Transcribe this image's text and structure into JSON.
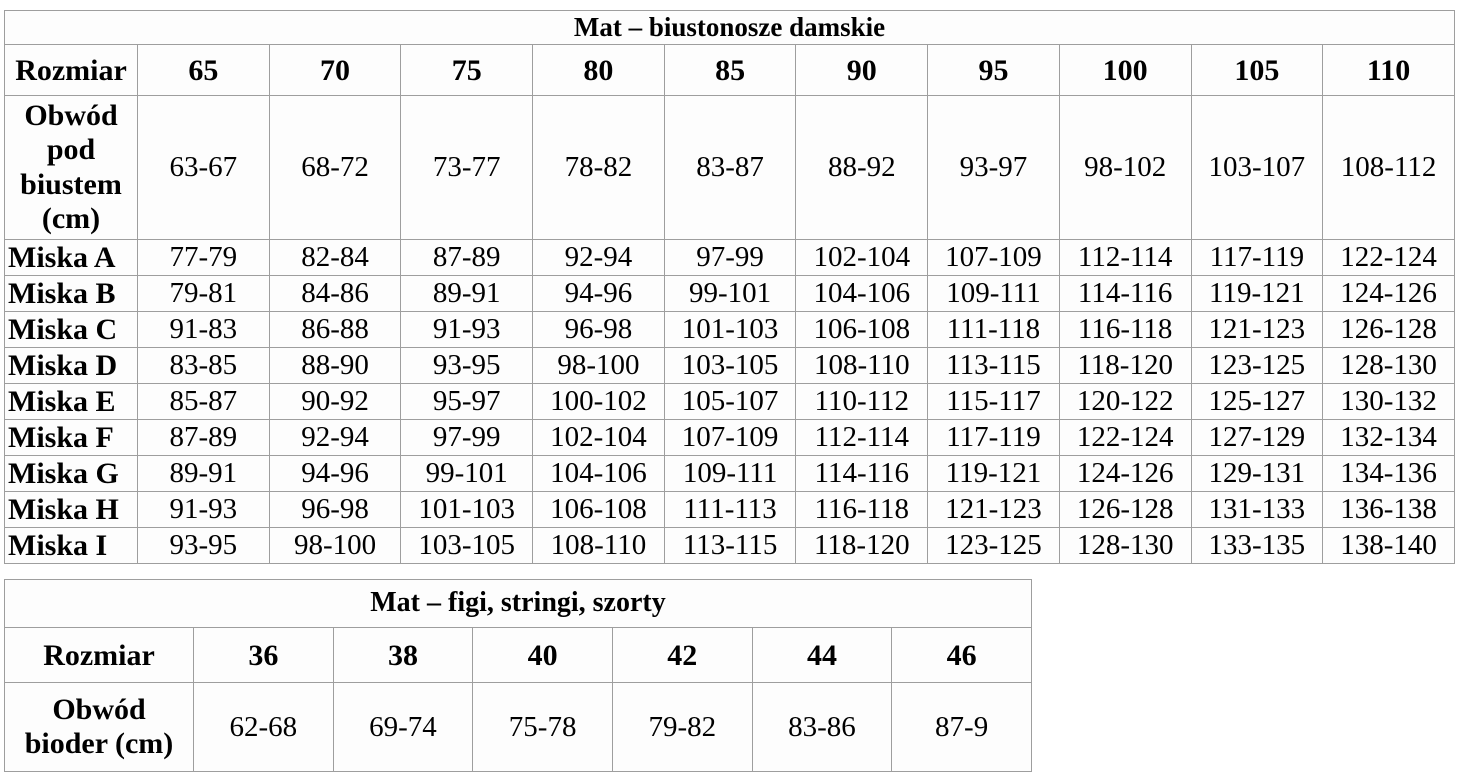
{
  "colors": {
    "border": "#9e9e9e",
    "background": "#fdfdfd",
    "text": "#000000"
  },
  "tables": [
    {
      "id": "bras",
      "title": "Mat – biustonosze damskie",
      "header": {
        "label": "Rozmiar",
        "sizes": [
          "65",
          "70",
          "75",
          "80",
          "85",
          "90",
          "95",
          "100",
          "105",
          "110"
        ]
      },
      "rows": [
        {
          "label": "Obwód pod biustem (cm)",
          "values": [
            "63-67",
            "68-72",
            "73-77",
            "78-82",
            "83-87",
            "88-92",
            "93-97",
            "98-102",
            "103-107",
            "108-112"
          ]
        },
        {
          "label": "Miska A",
          "values": [
            "77-79",
            "82-84",
            "87-89",
            "92-94",
            "97-99",
            "102-104",
            "107-109",
            "112-114",
            "117-119",
            "122-124"
          ]
        },
        {
          "label": "Miska B",
          "values": [
            "79-81",
            "84-86",
            "89-91",
            "94-96",
            "99-101",
            "104-106",
            "109-111",
            "114-116",
            "119-121",
            "124-126"
          ]
        },
        {
          "label": "Miska C",
          "values": [
            "91-83",
            "86-88",
            "91-93",
            "96-98",
            "101-103",
            "106-108",
            "111-118",
            "116-118",
            "121-123",
            "126-128"
          ]
        },
        {
          "label": "Miska D",
          "values": [
            "83-85",
            "88-90",
            "93-95",
            "98-100",
            "103-105",
            "108-110",
            "113-115",
            "118-120",
            "123-125",
            "128-130"
          ]
        },
        {
          "label": "Miska E",
          "values": [
            "85-87",
            "90-92",
            "95-97",
            "100-102",
            "105-107",
            "110-112",
            "115-117",
            "120-122",
            "125-127",
            "130-132"
          ]
        },
        {
          "label": "Miska F",
          "values": [
            "87-89",
            "92-94",
            "97-99",
            "102-104",
            "107-109",
            "112-114",
            "117-119",
            "122-124",
            "127-129",
            "132-134"
          ]
        },
        {
          "label": "Miska G",
          "values": [
            "89-91",
            "94-96",
            "99-101",
            "104-106",
            "109-111",
            "114-116",
            "119-121",
            "124-126",
            "129-131",
            "134-136"
          ]
        },
        {
          "label": "Miska H",
          "values": [
            "91-93",
            "96-98",
            "101-103",
            "106-108",
            "111-113",
            "116-118",
            "121-123",
            "126-128",
            "131-133",
            "136-138"
          ]
        },
        {
          "label": "Miska I",
          "values": [
            "93-95",
            "98-100",
            "103-105",
            "108-110",
            "113-115",
            "118-120",
            "123-125",
            "128-130",
            "133-135",
            "138-140"
          ]
        }
      ]
    },
    {
      "id": "briefs",
      "title": "Mat – figi, stringi, szorty",
      "header": {
        "label": "Rozmiar",
        "sizes": [
          "36",
          "38",
          "40",
          "42",
          "44",
          "46"
        ]
      },
      "rows": [
        {
          "label": "Obwód bioder (cm)",
          "values": [
            "62-68",
            "69-74",
            "75-78",
            "79-82",
            "83-86",
            "87-9"
          ]
        }
      ]
    }
  ]
}
